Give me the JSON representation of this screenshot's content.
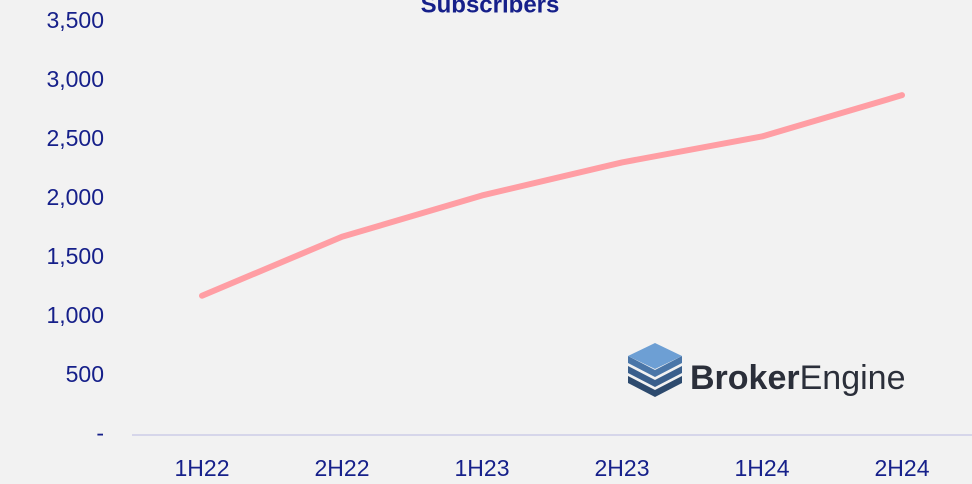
{
  "chart_data": {
    "type": "line",
    "title": "Subscribers",
    "categories": [
      "1H22",
      "2H22",
      "1H23",
      "2H23",
      "1H24",
      "2H24"
    ],
    "series": [
      {
        "name": "Subscribers",
        "color": "#ff9ea4",
        "values": [
          1180,
          1680,
          2030,
          2310,
          2530,
          2880
        ]
      }
    ],
    "ylim": [
      0,
      3500
    ],
    "yticks": [
      {
        "value": 0,
        "label": "-"
      },
      500,
      {
        "value": 1000,
        "label": "1,000"
      },
      {
        "value": 1500,
        "label": "1,500"
      },
      {
        "value": 2000,
        "label": "2,000"
      },
      {
        "value": 2500,
        "label": "2,500"
      },
      {
        "value": 3000,
        "label": "3,000"
      },
      {
        "value": 3500,
        "label": "3,500"
      }
    ],
    "grid": false,
    "logo": {
      "bold": "Broker",
      "light": "Engine"
    }
  }
}
